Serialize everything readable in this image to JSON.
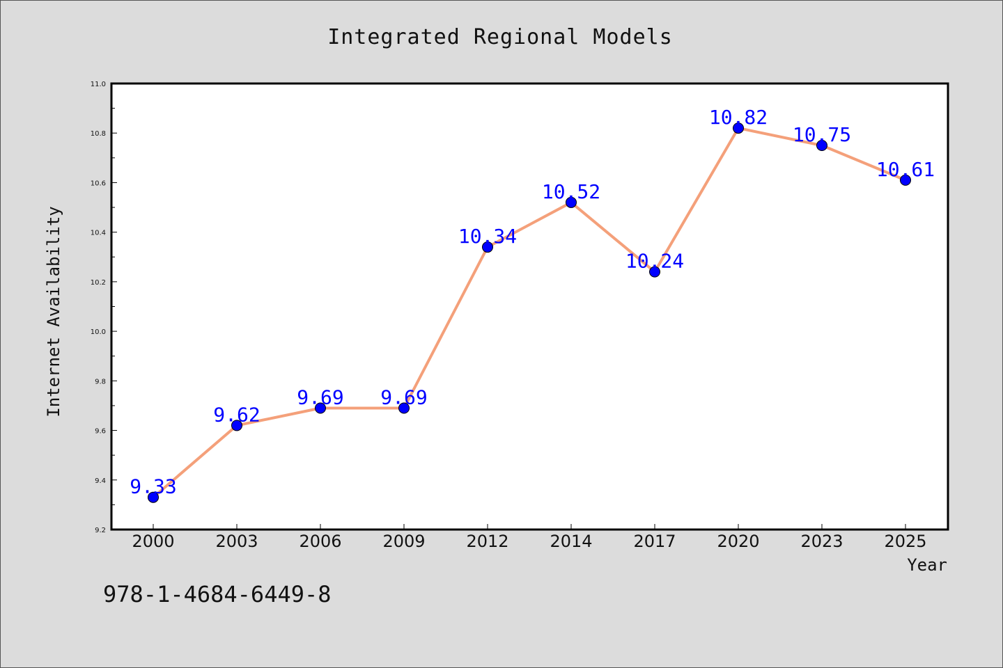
{
  "chart_data": {
    "type": "line",
    "title": "Integrated Regional Models",
    "xlabel": "Year",
    "ylabel": "Internet Availability",
    "categories": [
      "2000",
      "2003",
      "2006",
      "2009",
      "2012",
      "2014",
      "2017",
      "2020",
      "2023",
      "2025"
    ],
    "series": [
      {
        "values": [
          9.33,
          9.62,
          9.69,
          9.69,
          10.34,
          10.52,
          10.24,
          10.82,
          10.75,
          10.61
        ]
      }
    ],
    "data_labels": [
      "9.33",
      "9.62",
      "9.69",
      "9.69",
      "10.34",
      "10.52",
      "10.24",
      "10.82",
      "10.75",
      "10.61"
    ],
    "ylim": [
      9.2,
      11.0
    ],
    "yticks": [
      9.2,
      9.4,
      9.6,
      9.8,
      10.0,
      10.2,
      10.4,
      10.6,
      10.8,
      11.0
    ],
    "ytick_labels": [
      "9.2",
      "9.4",
      "9.6",
      "9.8",
      "10.0",
      "10.2",
      "10.4",
      "10.6",
      "10.8",
      "11.0"
    ],
    "grid": false,
    "legend": "none",
    "colors": {
      "line": "#f4a07a",
      "marker": "#0000ff",
      "label": "#0000ff",
      "background": "#dcdcdc",
      "plot_background": "#ffffff"
    }
  },
  "footer": {
    "identifier": "978-1-4684-6449-8"
  }
}
